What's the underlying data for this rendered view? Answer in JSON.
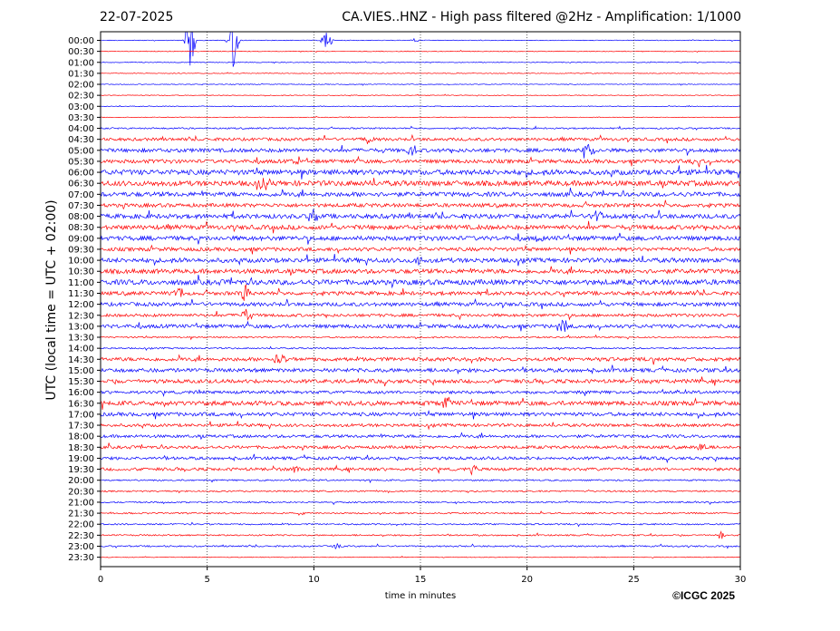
{
  "header": {
    "date": "22-07-2025",
    "title": "CA.VIES..HNZ - High pass filtered @2Hz - Amplification: 1/1000"
  },
  "footer": {
    "copyright": "©ICGC 2025"
  },
  "colors": {
    "trace_a": "#0000ff",
    "trace_b": "#ff0000",
    "grid": "#000000",
    "frame": "#000000"
  },
  "chart_data": {
    "type": "line",
    "subtype": "helicorder",
    "xlabel": "time in minutes",
    "ylabel": "UTC (local time = UTC + 02:00)",
    "xlim": [
      0,
      30
    ],
    "x_ticks": [
      "0",
      "5",
      "10",
      "15",
      "20",
      "25",
      "30"
    ],
    "x_tick_values": [
      0,
      5,
      10,
      15,
      20,
      25,
      30
    ],
    "vertical_gridlines_at": [
      5,
      10,
      15,
      20,
      25
    ],
    "grid": "vertical dotted",
    "y_ticks": [
      "00:00",
      "00:30",
      "01:00",
      "01:30",
      "02:00",
      "02:30",
      "03:00",
      "03:30",
      "04:00",
      "04:30",
      "05:00",
      "05:30",
      "06:00",
      "06:30",
      "07:00",
      "07:30",
      "08:00",
      "08:30",
      "09:00",
      "09:30",
      "10:00",
      "10:30",
      "11:00",
      "11:30",
      "12:00",
      "12:30",
      "13:00",
      "13:30",
      "14:00",
      "14:30",
      "15:00",
      "15:30",
      "16:00",
      "16:30",
      "17:00",
      "17:30",
      "18:00",
      "18:30",
      "19:00",
      "19:30",
      "20:00",
      "20:30",
      "21:00",
      "21:30",
      "22:00",
      "22:30",
      "23:00",
      "23:30"
    ],
    "series_colors_alternate": [
      "#0000ff",
      "#ff0000"
    ],
    "noise_level": [
      1,
      1,
      1,
      1,
      1,
      1,
      1,
      1,
      2,
      4,
      5,
      5,
      7,
      7,
      6,
      5,
      6,
      6,
      6,
      5,
      6,
      6,
      7,
      5,
      5,
      4,
      5,
      2,
      2,
      5,
      5,
      5,
      4,
      6,
      5,
      4,
      4,
      4,
      4,
      4,
      2,
      2,
      2,
      2,
      2,
      2,
      2,
      1
    ],
    "events": [
      {
        "line": 0,
        "x": 4.2,
        "amp": 40
      },
      {
        "line": 0,
        "x": 6.2,
        "amp": 40
      },
      {
        "line": 0,
        "x": 10.6,
        "amp": 16
      },
      {
        "line": 0,
        "x": 14.8,
        "amp": 3
      },
      {
        "line": 9,
        "x": 12.5,
        "amp": 8
      },
      {
        "line": 10,
        "x": 14.6,
        "amp": 14
      },
      {
        "line": 10,
        "x": 22.9,
        "amp": 12
      },
      {
        "line": 11,
        "x": 9.2,
        "amp": 8
      },
      {
        "line": 11,
        "x": 28.0,
        "amp": 10
      },
      {
        "line": 13,
        "x": 7.7,
        "amp": 10
      },
      {
        "line": 16,
        "x": 10.0,
        "amp": 8
      },
      {
        "line": 16,
        "x": 23.3,
        "amp": 10
      },
      {
        "line": 18,
        "x": 20.6,
        "amp": 8
      },
      {
        "line": 20,
        "x": 14.9,
        "amp": 10
      },
      {
        "line": 23,
        "x": 6.8,
        "amp": 14
      },
      {
        "line": 23,
        "x": 3.7,
        "amp": 10
      },
      {
        "line": 25,
        "x": 6.8,
        "amp": 10
      },
      {
        "line": 26,
        "x": 21.7,
        "amp": 10
      },
      {
        "line": 29,
        "x": 8.4,
        "amp": 10
      },
      {
        "line": 33,
        "x": 16.2,
        "amp": 10
      },
      {
        "line": 37,
        "x": 28.2,
        "amp": 10
      },
      {
        "line": 39,
        "x": 9.2,
        "amp": 8
      },
      {
        "line": 39,
        "x": 17.5,
        "amp": 8
      },
      {
        "line": 45,
        "x": 29.1,
        "amp": 5
      },
      {
        "line": 46,
        "x": 11.0,
        "amp": 4
      }
    ]
  }
}
